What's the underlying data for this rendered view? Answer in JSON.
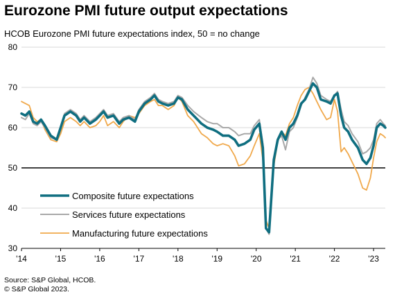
{
  "title": "Eurozone PMI future output expectations",
  "subtitle": "HCOB  Eurozone PMI future expectations  index, 50 = no change",
  "source_lines": [
    "Source: S&P Global, HCOB.",
    "© S&P Global 2023."
  ],
  "colors": {
    "composite": "#0f6e80",
    "services": "#a8a8a8",
    "manufacturing": "#f0a84a"
  },
  "chart_data": {
    "type": "line",
    "ylim": [
      30,
      80
    ],
    "yticks": [
      "30",
      "40",
      "50",
      "60",
      "70",
      "80"
    ],
    "reference_line": 50,
    "xlim": [
      2014.0,
      2023.3
    ],
    "xtick_labels": [
      "'14",
      "'15",
      "'16",
      "'17",
      "'18",
      "'19",
      "'20",
      "'21",
      "'22",
      "'23"
    ],
    "legend": [
      "Composite future expectations",
      "Services future expectations",
      "Manufacturing future expectations"
    ],
    "series": [
      {
        "name": "Composite future expectations",
        "key": "composite",
        "points": [
          [
            2014.0,
            63.5
          ],
          [
            2014.1,
            63.0
          ],
          [
            2014.2,
            64.0
          ],
          [
            2014.3,
            61.5
          ],
          [
            2014.4,
            61.0
          ],
          [
            2014.5,
            62.0
          ],
          [
            2014.6,
            60.5
          ],
          [
            2014.75,
            58.0
          ],
          [
            2014.9,
            57.0
          ],
          [
            2015.0,
            60.0
          ],
          [
            2015.1,
            63.0
          ],
          [
            2015.25,
            64.0
          ],
          [
            2015.4,
            63.0
          ],
          [
            2015.5,
            61.5
          ],
          [
            2015.6,
            62.5
          ],
          [
            2015.75,
            61.0
          ],
          [
            2015.9,
            62.0
          ],
          [
            2016.0,
            63.0
          ],
          [
            2016.1,
            64.0
          ],
          [
            2016.2,
            62.5
          ],
          [
            2016.35,
            63.0
          ],
          [
            2016.5,
            61.0
          ],
          [
            2016.6,
            62.0
          ],
          [
            2016.75,
            62.5
          ],
          [
            2016.9,
            61.5
          ],
          [
            2017.0,
            64.0
          ],
          [
            2017.15,
            66.0
          ],
          [
            2017.3,
            67.0
          ],
          [
            2017.4,
            68.0
          ],
          [
            2017.5,
            66.5
          ],
          [
            2017.6,
            66.0
          ],
          [
            2017.75,
            65.5
          ],
          [
            2017.9,
            66.0
          ],
          [
            2018.0,
            67.5
          ],
          [
            2018.1,
            67.0
          ],
          [
            2018.25,
            64.5
          ],
          [
            2018.4,
            63.0
          ],
          [
            2018.6,
            61.0
          ],
          [
            2018.75,
            60.0
          ],
          [
            2018.9,
            59.5
          ],
          [
            2019.0,
            59.0
          ],
          [
            2019.15,
            58.0
          ],
          [
            2019.3,
            58.0
          ],
          [
            2019.45,
            57.0
          ],
          [
            2019.55,
            55.5
          ],
          [
            2019.7,
            56.0
          ],
          [
            2019.85,
            57.0
          ],
          [
            2019.95,
            59.5
          ],
          [
            2020.08,
            61.0
          ],
          [
            2020.17,
            55.0
          ],
          [
            2020.25,
            35.0
          ],
          [
            2020.33,
            34.0
          ],
          [
            2020.45,
            52.0
          ],
          [
            2020.55,
            57.0
          ],
          [
            2020.65,
            59.0
          ],
          [
            2020.75,
            57.0
          ],
          [
            2020.85,
            60.0
          ],
          [
            2020.95,
            61.0
          ],
          [
            2021.05,
            63.0
          ],
          [
            2021.15,
            66.0
          ],
          [
            2021.25,
            67.0
          ],
          [
            2021.35,
            69.0
          ],
          [
            2021.45,
            71.0
          ],
          [
            2021.55,
            70.0
          ],
          [
            2021.65,
            67.0
          ],
          [
            2021.8,
            66.5
          ],
          [
            2021.9,
            66.0
          ],
          [
            2022.0,
            68.0
          ],
          [
            2022.08,
            68.5
          ],
          [
            2022.17,
            63.0
          ],
          [
            2022.25,
            60.0
          ],
          [
            2022.35,
            59.0
          ],
          [
            2022.45,
            57.0
          ],
          [
            2022.6,
            55.0
          ],
          [
            2022.72,
            52.0
          ],
          [
            2022.82,
            51.0
          ],
          [
            2022.92,
            52.5
          ],
          [
            2023.0,
            55.5
          ],
          [
            2023.08,
            60.0
          ],
          [
            2023.17,
            61.0
          ],
          [
            2023.25,
            60.5
          ],
          [
            2023.3,
            60.0
          ]
        ]
      },
      {
        "name": "Services future expectations",
        "key": "services",
        "points": [
          [
            2014.0,
            62.5
          ],
          [
            2014.1,
            62.0
          ],
          [
            2014.2,
            63.5
          ],
          [
            2014.3,
            61.0
          ],
          [
            2014.4,
            60.5
          ],
          [
            2014.5,
            61.5
          ],
          [
            2014.6,
            60.0
          ],
          [
            2014.75,
            57.5
          ],
          [
            2014.9,
            57.0
          ],
          [
            2015.0,
            59.5
          ],
          [
            2015.1,
            63.5
          ],
          [
            2015.25,
            64.5
          ],
          [
            2015.4,
            63.5
          ],
          [
            2015.5,
            62.0
          ],
          [
            2015.6,
            63.0
          ],
          [
            2015.75,
            61.5
          ],
          [
            2015.9,
            62.5
          ],
          [
            2016.0,
            63.5
          ],
          [
            2016.1,
            64.5
          ],
          [
            2016.2,
            63.0
          ],
          [
            2016.35,
            63.5
          ],
          [
            2016.5,
            61.5
          ],
          [
            2016.6,
            62.5
          ],
          [
            2016.75,
            63.0
          ],
          [
            2016.9,
            62.0
          ],
          [
            2017.0,
            64.5
          ],
          [
            2017.15,
            66.5
          ],
          [
            2017.3,
            67.5
          ],
          [
            2017.4,
            68.5
          ],
          [
            2017.5,
            67.0
          ],
          [
            2017.6,
            66.5
          ],
          [
            2017.75,
            66.0
          ],
          [
            2017.9,
            66.5
          ],
          [
            2018.0,
            68.0
          ],
          [
            2018.1,
            67.5
          ],
          [
            2018.25,
            65.5
          ],
          [
            2018.4,
            64.0
          ],
          [
            2018.6,
            62.5
          ],
          [
            2018.75,
            61.5
          ],
          [
            2018.9,
            61.0
          ],
          [
            2019.0,
            61.0
          ],
          [
            2019.15,
            60.0
          ],
          [
            2019.3,
            60.0
          ],
          [
            2019.45,
            59.0
          ],
          [
            2019.55,
            58.0
          ],
          [
            2019.7,
            58.5
          ],
          [
            2019.85,
            58.5
          ],
          [
            2019.95,
            60.5
          ],
          [
            2020.08,
            62.0
          ],
          [
            2020.17,
            56.0
          ],
          [
            2020.25,
            35.0
          ],
          [
            2020.33,
            33.5
          ],
          [
            2020.45,
            52.5
          ],
          [
            2020.55,
            57.0
          ],
          [
            2020.65,
            58.0
          ],
          [
            2020.75,
            54.5
          ],
          [
            2020.85,
            59.0
          ],
          [
            2020.95,
            60.0
          ],
          [
            2021.05,
            62.5
          ],
          [
            2021.15,
            65.5
          ],
          [
            2021.25,
            67.5
          ],
          [
            2021.35,
            69.5
          ],
          [
            2021.45,
            72.5
          ],
          [
            2021.55,
            71.0
          ],
          [
            2021.65,
            68.0
          ],
          [
            2021.8,
            67.0
          ],
          [
            2021.9,
            66.5
          ],
          [
            2022.0,
            68.0
          ],
          [
            2022.08,
            69.0
          ],
          [
            2022.17,
            64.5
          ],
          [
            2022.25,
            61.5
          ],
          [
            2022.35,
            60.5
          ],
          [
            2022.45,
            58.5
          ],
          [
            2022.6,
            56.5
          ],
          [
            2022.72,
            53.5
          ],
          [
            2022.82,
            54.0
          ],
          [
            2022.92,
            55.0
          ],
          [
            2023.0,
            57.0
          ],
          [
            2023.08,
            61.0
          ],
          [
            2023.17,
            62.0
          ],
          [
            2023.25,
            61.0
          ],
          [
            2023.3,
            60.5
          ]
        ]
      },
      {
        "name": "Manufacturing future expectations",
        "key": "manufacturing",
        "points": [
          [
            2014.0,
            66.5
          ],
          [
            2014.1,
            66.0
          ],
          [
            2014.2,
            65.5
          ],
          [
            2014.3,
            62.5
          ],
          [
            2014.4,
            61.5
          ],
          [
            2014.5,
            62.0
          ],
          [
            2014.6,
            59.5
          ],
          [
            2014.75,
            57.0
          ],
          [
            2014.9,
            56.5
          ],
          [
            2015.0,
            58.5
          ],
          [
            2015.1,
            61.5
          ],
          [
            2015.25,
            62.5
          ],
          [
            2015.4,
            61.5
          ],
          [
            2015.5,
            60.5
          ],
          [
            2015.6,
            61.5
          ],
          [
            2015.75,
            60.0
          ],
          [
            2015.9,
            60.5
          ],
          [
            2016.0,
            61.5
          ],
          [
            2016.1,
            63.0
          ],
          [
            2016.2,
            60.5
          ],
          [
            2016.35,
            61.5
          ],
          [
            2016.5,
            60.0
          ],
          [
            2016.6,
            61.5
          ],
          [
            2016.75,
            63.0
          ],
          [
            2016.9,
            62.5
          ],
          [
            2017.0,
            63.5
          ],
          [
            2017.15,
            65.5
          ],
          [
            2017.3,
            66.5
          ],
          [
            2017.4,
            67.0
          ],
          [
            2017.5,
            65.5
          ],
          [
            2017.6,
            65.5
          ],
          [
            2017.75,
            64.5
          ],
          [
            2017.9,
            65.5
          ],
          [
            2018.0,
            67.5
          ],
          [
            2018.1,
            66.5
          ],
          [
            2018.25,
            63.0
          ],
          [
            2018.4,
            61.5
          ],
          [
            2018.6,
            58.5
          ],
          [
            2018.75,
            57.5
          ],
          [
            2018.9,
            56.0
          ],
          [
            2019.0,
            55.5
          ],
          [
            2019.15,
            56.0
          ],
          [
            2019.3,
            55.5
          ],
          [
            2019.45,
            53.0
          ],
          [
            2019.55,
            50.5
          ],
          [
            2019.7,
            51.0
          ],
          [
            2019.85,
            53.0
          ],
          [
            2019.95,
            55.5
          ],
          [
            2020.08,
            58.5
          ],
          [
            2020.17,
            52.0
          ],
          [
            2020.25,
            37.0
          ],
          [
            2020.33,
            35.0
          ],
          [
            2020.45,
            50.5
          ],
          [
            2020.55,
            56.5
          ],
          [
            2020.65,
            59.0
          ],
          [
            2020.75,
            58.0
          ],
          [
            2020.85,
            61.0
          ],
          [
            2020.95,
            62.5
          ],
          [
            2021.05,
            65.5
          ],
          [
            2021.15,
            68.0
          ],
          [
            2021.25,
            69.5
          ],
          [
            2021.35,
            70.0
          ],
          [
            2021.45,
            68.5
          ],
          [
            2021.55,
            66.5
          ],
          [
            2021.65,
            64.5
          ],
          [
            2021.8,
            62.0
          ],
          [
            2021.9,
            62.5
          ],
          [
            2022.0,
            67.0
          ],
          [
            2022.08,
            64.0
          ],
          [
            2022.17,
            54.0
          ],
          [
            2022.25,
            55.0
          ],
          [
            2022.35,
            53.5
          ],
          [
            2022.45,
            51.5
          ],
          [
            2022.6,
            48.5
          ],
          [
            2022.72,
            45.0
          ],
          [
            2022.82,
            44.5
          ],
          [
            2022.92,
            47.5
          ],
          [
            2023.0,
            52.5
          ],
          [
            2023.08,
            56.5
          ],
          [
            2023.17,
            58.5
          ],
          [
            2023.25,
            58.0
          ],
          [
            2023.3,
            57.5
          ]
        ]
      }
    ]
  }
}
